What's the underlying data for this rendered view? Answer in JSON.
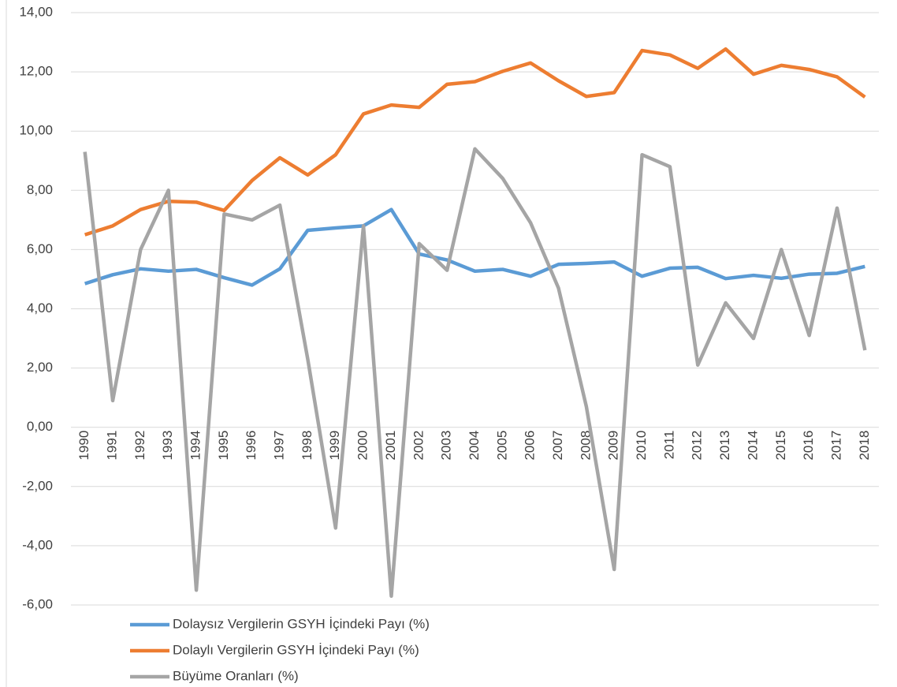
{
  "chart_data": {
    "type": "line",
    "categories": [
      "1990",
      "1991",
      "1992",
      "1993",
      "1994",
      "1995",
      "1996",
      "1997",
      "1998",
      "1999",
      "2000",
      "2001",
      "2002",
      "2003",
      "2004",
      "2005",
      "2006",
      "2007",
      "2008",
      "2009",
      "2010",
      "2011",
      "2012",
      "2013",
      "2014",
      "2015",
      "2016",
      "2017",
      "2018"
    ],
    "series": [
      {
        "name": "Dolaysız Vergilerin GSYH İçindeki Payı (%)",
        "color": "#5b9bd5",
        "values": [
          4.85,
          5.15,
          5.35,
          5.27,
          5.33,
          5.05,
          4.8,
          5.35,
          6.65,
          6.73,
          6.8,
          7.35,
          5.85,
          5.65,
          5.27,
          5.33,
          5.1,
          5.5,
          5.53,
          5.58,
          5.1,
          5.37,
          5.4,
          5.02,
          5.13,
          5.03,
          5.17,
          5.2,
          5.43
        ]
      },
      {
        "name": "Dolaylı Vergilerin GSYH İçindeki Payı (%)",
        "color": "#ed7d31",
        "values": [
          6.5,
          6.8,
          7.35,
          7.63,
          7.6,
          7.32,
          8.33,
          9.1,
          8.52,
          9.2,
          10.58,
          10.88,
          10.8,
          11.58,
          11.67,
          12.02,
          12.3,
          11.7,
          11.17,
          11.3,
          12.72,
          12.57,
          12.12,
          12.77,
          11.92,
          12.22,
          12.08,
          11.83,
          11.15
        ]
      },
      {
        "name": "Büyüme Oranları (%)",
        "color": "#a5a5a5",
        "values": [
          9.3,
          0.9,
          6.0,
          8.0,
          -5.5,
          7.2,
          7.0,
          7.5,
          2.3,
          -3.4,
          6.8,
          -5.7,
          6.2,
          5.3,
          9.4,
          8.4,
          6.9,
          4.7,
          0.7,
          -4.8,
          9.2,
          8.8,
          2.1,
          4.2,
          3.0,
          6.0,
          3.1,
          7.4,
          2.6
        ]
      }
    ],
    "ylim": [
      -6,
      14
    ],
    "yticks": [
      {
        "value": -6,
        "label": "-6,00"
      },
      {
        "value": -4,
        "label": "-4,00"
      },
      {
        "value": -2,
        "label": "-2,00"
      },
      {
        "value": 0,
        "label": "0,00"
      },
      {
        "value": 2,
        "label": "2,00"
      },
      {
        "value": 4,
        "label": "4,00"
      },
      {
        "value": 6,
        "label": "6,00"
      },
      {
        "value": 8,
        "label": "8,00"
      },
      {
        "value": 10,
        "label": "10,00"
      },
      {
        "value": 12,
        "label": "12,00"
      },
      {
        "value": 14,
        "label": "14,00"
      }
    ],
    "grid": true,
    "legend": "bottom"
  }
}
